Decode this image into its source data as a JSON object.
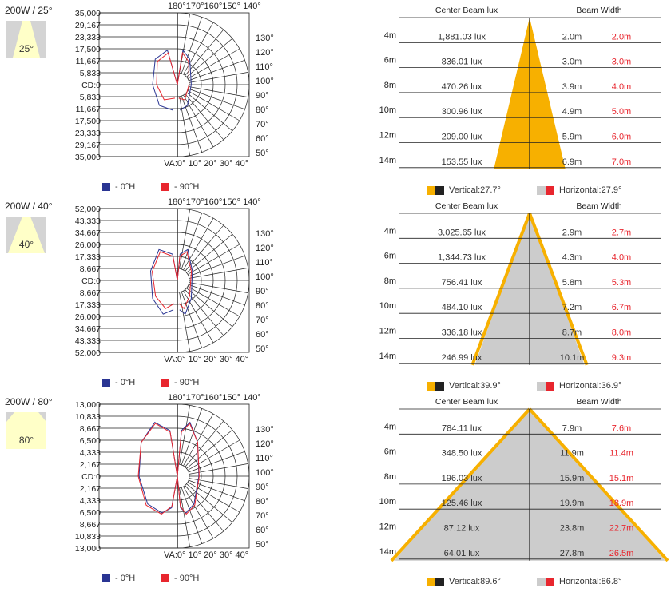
{
  "colors": {
    "blue": "#2a3593",
    "red": "#e8262e",
    "orange": "#f7b000",
    "grey": "#cccccc",
    "dark": "#222222",
    "iconbg": "#d4d4d4",
    "iconlight": "#ffffc8"
  },
  "legend": {
    "h0": "- 0°H",
    "h90": "- 90°H"
  },
  "table_headers": {
    "lux": "Center Beam lux",
    "width": "Beam Width"
  },
  "top_angle_labels": "180°170°160°150° 140°",
  "bottom_angle_labels": "VA:0° 10° 20° 30° 40°",
  "right_angle_labels": [
    "130°",
    "120°",
    "110°",
    "100°",
    "90°",
    "80°",
    "70°",
    "60°",
    "50°"
  ],
  "sections": [
    {
      "title": "200W / 25°",
      "icon_deg": "25°",
      "cd_labels": [
        "35,000",
        "29,167",
        "23,333",
        "17,500",
        "11,667",
        "5,833",
        "CD:0",
        "5,833",
        "11,667",
        "17,500",
        "23,333",
        "29,167",
        "35,000"
      ],
      "distances": [
        "4m",
        "6m",
        "8m",
        "10m",
        "12m",
        "14m"
      ],
      "lux": [
        "1,881.03 lux",
        "836.01 lux",
        "470.26 lux",
        "300.96 lux",
        "209.00 lux",
        "153.55 lux"
      ],
      "width_v": [
        "2.0m",
        "3.0m",
        "3.9m",
        "4.9m",
        "5.9m",
        "6.9m"
      ],
      "width_h": [
        "2.0m",
        "3.0m",
        "4.0m",
        "5.0m",
        "6.0m",
        "7.0m"
      ],
      "vertical": "Vertical:27.7°",
      "horizontal": "Horizontal:27.9°"
    },
    {
      "title": "200W / 40°",
      "icon_deg": "40°",
      "cd_labels": [
        "52,000",
        "43,333",
        "34,667",
        "26,000",
        "17,333",
        "8,667",
        "CD:0",
        "8,667",
        "17,333",
        "26,000",
        "34,667",
        "43,333",
        "52,000"
      ],
      "distances": [
        "4m",
        "6m",
        "8m",
        "10m",
        "12m",
        "14m"
      ],
      "lux": [
        "3,025.65 lux",
        "1,344.73 lux",
        "756.41 lux",
        "484.10 lux",
        "336.18 lux",
        "246.99 lux"
      ],
      "width_v": [
        "2.9m",
        "4.3m",
        "5.8m",
        "7.2m",
        "8.7m",
        "10.1m"
      ],
      "width_h": [
        "2.7m",
        "4.0m",
        "5.3m",
        "6.7m",
        "8.0m",
        "9.3m"
      ],
      "vertical": "Vertical:39.9°",
      "horizontal": "Horizontal:36.9°"
    },
    {
      "title": "200W / 80°",
      "icon_deg": "80°",
      "cd_labels": [
        "13,000",
        "10,833",
        "8,667",
        "6,500",
        "4,333",
        "2,167",
        "CD:0",
        "2,167",
        "4,333",
        "6,500",
        "8,667",
        "10,833",
        "13,000"
      ],
      "distances": [
        "4m",
        "6m",
        "8m",
        "10m",
        "12m",
        "14m"
      ],
      "lux": [
        "784.11 lux",
        "348.50 lux",
        "196.03 lux",
        "125.46 lux",
        "87.12 lux",
        "64.01 lux"
      ],
      "width_v": [
        "7.9m",
        "11.9m",
        "15.9m",
        "19.9m",
        "23.8m",
        "27.8m"
      ],
      "width_h": [
        "7.6m",
        "11.4m",
        "15.1m",
        "18.9m",
        "22.7m",
        "26.5m"
      ],
      "vertical": "Vertical:89.6°",
      "horizontal": "Horizontal:86.8°"
    }
  ]
}
